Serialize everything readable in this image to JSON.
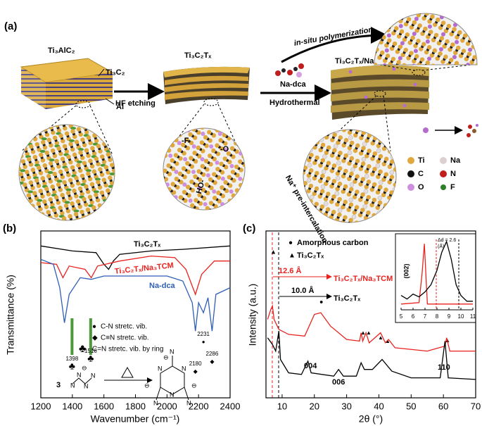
{
  "panel_a": {
    "label": "(a)",
    "precursor": "Ti₃AlC₂",
    "layer": "Ti₃C₂",
    "interlayer": "Al",
    "step1": "HF etching",
    "mxene": "Ti₃C₂Tₓ",
    "step2_reagent": "Na-dca",
    "step2_condition": "Hydrothermal",
    "polymerization": "in-situ polymerization",
    "product": "Ti₃C₂Tₓ/Na₃TCM",
    "intercalation": "Na⁺ pre-intercalation",
    "groups": [
      "-F",
      "-O",
      "HO-"
    ],
    "legend": [
      "Ti",
      "Na",
      "C",
      "N",
      "O",
      "F"
    ]
  },
  "chart_data": [
    {
      "type": "line",
      "label": "(b)",
      "xlabel": "Wavenumber (cm⁻¹)",
      "ylabel": "Transmittance (%)",
      "xlim": [
        1200,
        2400
      ],
      "xticks": [
        1200,
        1400,
        1600,
        1800,
        2000,
        2200,
        2400
      ],
      "ylim": [
        0,
        100
      ],
      "series": [
        {
          "name": "Ti₃C₂Tₓ",
          "color": "#000000",
          "x": [
            1200,
            1400,
            1550,
            1600,
            1630,
            1660,
            1700,
            1900,
            2100,
            2400
          ],
          "values": [
            91,
            88,
            87,
            80,
            77,
            82,
            86,
            88,
            89,
            91
          ]
        },
        {
          "name": "Ti₃C₂Tₓ/Na₃TCM",
          "color": "#e8231f",
          "x": [
            1200,
            1300,
            1340,
            1380,
            1480,
            1520,
            1560,
            1700,
            1900,
            2050,
            2120,
            2180,
            2220,
            2300,
            2400
          ],
          "values": [
            81,
            80,
            72,
            79,
            77,
            72,
            79,
            82,
            85,
            84,
            77,
            62,
            74,
            82,
            82
          ]
        },
        {
          "name": "Na-dca",
          "color": "#2e5fb5",
          "x": [
            1200,
            1280,
            1320,
            1350,
            1380,
            1450,
            1520,
            1600,
            1800,
            2000,
            2100,
            2160,
            2180,
            2200,
            2231,
            2260,
            2286,
            2310,
            2400
          ],
          "values": [
            83,
            80,
            66,
            45,
            62,
            72,
            71,
            73,
            73,
            73,
            70,
            57,
            40,
            57,
            51,
            60,
            40,
            62,
            66
          ]
        }
      ],
      "peak_labels": [
        1398,
        1516,
        2180,
        2231,
        2286
      ],
      "assignments": [
        {
          "symbol": "●",
          "text": "C-N stretc. vib."
        },
        {
          "symbol": "◆",
          "text": "C≡N stretc. vib."
        },
        {
          "symbol": "♣",
          "text": "C=N stretc. vib. by ring"
        }
      ],
      "scheme": {
        "coefficient": "3",
        "atom": "N",
        "charge": "⊖"
      }
    },
    {
      "type": "line",
      "label": "(c)",
      "xlabel": "2θ (°)",
      "ylabel": "Intensity (a.u.)",
      "xlim": [
        5,
        70
      ],
      "xticks": [
        10,
        20,
        30,
        40,
        50,
        60,
        70
      ],
      "ylim": [
        0,
        100
      ],
      "series": [
        {
          "name": "Ti₃C₂Tₓ/Na₃TCM",
          "color": "#e8231f",
          "x": [
            5.5,
            6.5,
            7,
            7.5,
            9,
            12,
            17,
            20,
            22,
            25,
            30,
            34,
            34.5,
            35,
            36,
            37,
            40.5,
            42,
            43,
            45,
            55,
            60.5,
            61,
            62,
            70
          ],
          "values": [
            47,
            53,
            55,
            47,
            41,
            38,
            37,
            50,
            51,
            43,
            35,
            34,
            39,
            34,
            39,
            33,
            39,
            33,
            35,
            30,
            28,
            31,
            36,
            28,
            28
          ]
        },
        {
          "name": "Ti₃C₂Tₓ",
          "color": "#000000",
          "x": [
            5.5,
            7,
            8,
            9,
            9.5,
            12,
            16,
            18,
            19,
            26,
            27.5,
            29,
            33,
            34.5,
            35.5,
            38,
            41,
            44,
            50,
            59,
            60.5,
            61.5,
            70
          ],
          "values": [
            36,
            32,
            28,
            40,
            23,
            15,
            14,
            22,
            15,
            13,
            17,
            13,
            13,
            21,
            17,
            17,
            23,
            16,
            12,
            12,
            34,
            12,
            11
          ]
        }
      ],
      "markers": [
        {
          "symbol": "●",
          "label": "Amorphous carbon"
        },
        {
          "symbol": "▲",
          "label": "Ti₃C₂Tₓ"
        }
      ],
      "d_spacings": [
        "12.6 Å",
        "10.0 Å"
      ],
      "peak_labels": [
        "004",
        "006",
        "110"
      ]
    },
    {
      "type": "line",
      "xlim": [
        5,
        11
      ],
      "xticks": [
        5,
        6,
        7,
        8,
        9,
        10,
        11
      ],
      "ylim": [
        0,
        100
      ],
      "series": [
        {
          "color": "#e8231f",
          "x": [
            5,
            6.5,
            6.75,
            6.95,
            7.1,
            7.2,
            11
          ],
          "values": [
            8,
            10,
            50,
            92,
            40,
            8,
            8
          ]
        },
        {
          "color": "#000000",
          "x": [
            5,
            5.5,
            6,
            6.5,
            7,
            7.5,
            8,
            8.4,
            8.8,
            9.2,
            9.6,
            10,
            10.5,
            11
          ],
          "values": [
            20,
            15,
            22,
            18,
            25,
            35,
            55,
            80,
            95,
            70,
            35,
            20,
            12,
            12
          ]
        }
      ],
      "annotations": [
        "(002)",
        "Δd = 2.6",
        "(Å)"
      ]
    }
  ]
}
